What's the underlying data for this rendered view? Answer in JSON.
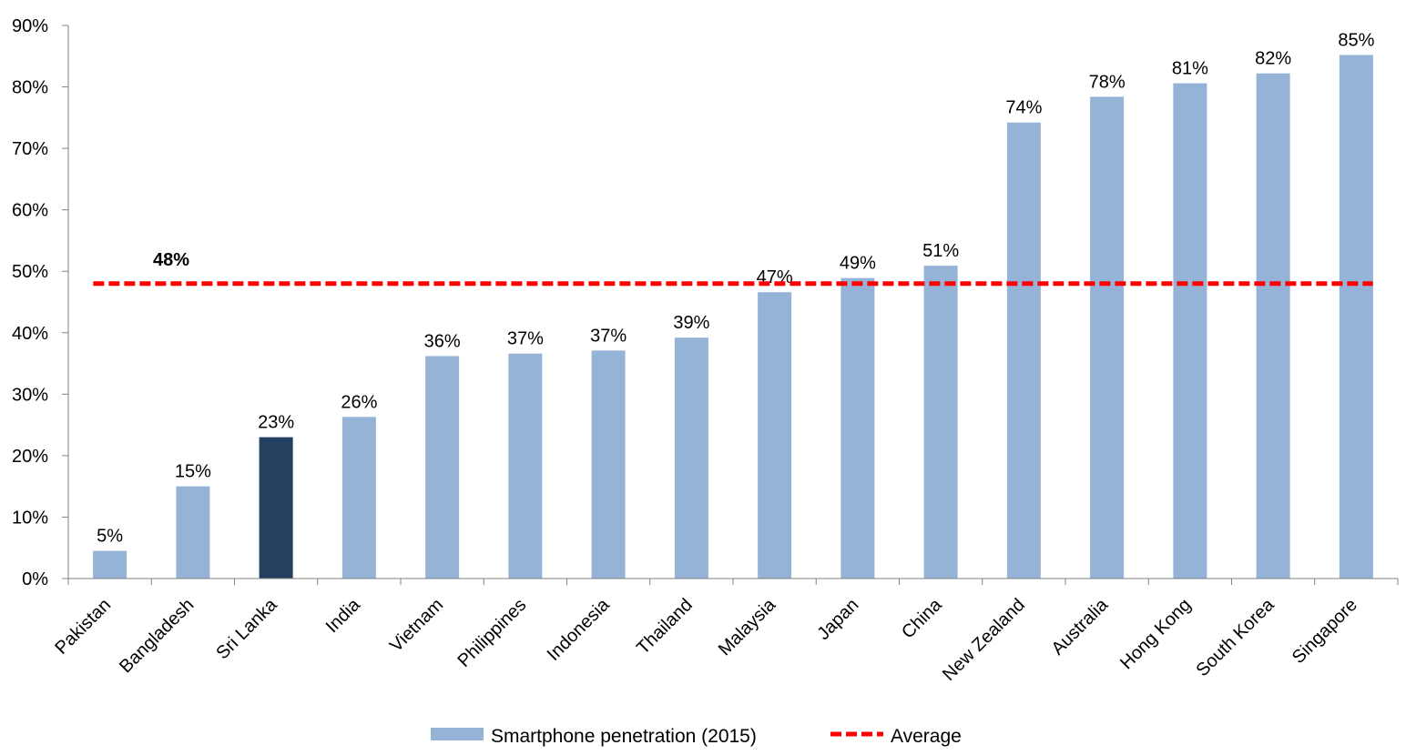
{
  "chart_data": {
    "type": "bar",
    "title": "",
    "xlabel": "",
    "ylabel": "",
    "ylim": [
      0,
      90
    ],
    "y_ticks": [
      "0%",
      "10%",
      "20%",
      "30%",
      "40%",
      "50%",
      "60%",
      "70%",
      "80%",
      "90%"
    ],
    "grid": false,
    "legend_position": "bottom-center",
    "categories": [
      "Pakistan",
      "Bangladesh",
      "Sri Lanka",
      "India",
      "Vietnam",
      "Philippines",
      "Indonesia",
      "Thailand",
      "Malaysia",
      "Japan",
      "China",
      "New Zealand",
      "Australia",
      "Hong Kong",
      "South Korea",
      "Singapore"
    ],
    "series": [
      {
        "name": "Smartphone penetration (2015)",
        "values": [
          4.5,
          15,
          23,
          26.3,
          36.2,
          36.6,
          37.1,
          39.2,
          46.6,
          48.9,
          50.9,
          74.2,
          78.4,
          80.6,
          82.2,
          85.2
        ],
        "data_labels": [
          "5%",
          "15%",
          "23%",
          "26%",
          "36%",
          "37%",
          "37%",
          "39%",
          "47%",
          "49%",
          "51%",
          "74%",
          "78%",
          "81%",
          "82%",
          "85%"
        ],
        "color": "#95b3d7",
        "highlight": {
          "category": "Sri Lanka",
          "color": "#243f60"
        }
      }
    ],
    "average": {
      "name": "Average",
      "value": 48,
      "label": "48%",
      "color": "#ff0000",
      "style": "dashed"
    }
  }
}
